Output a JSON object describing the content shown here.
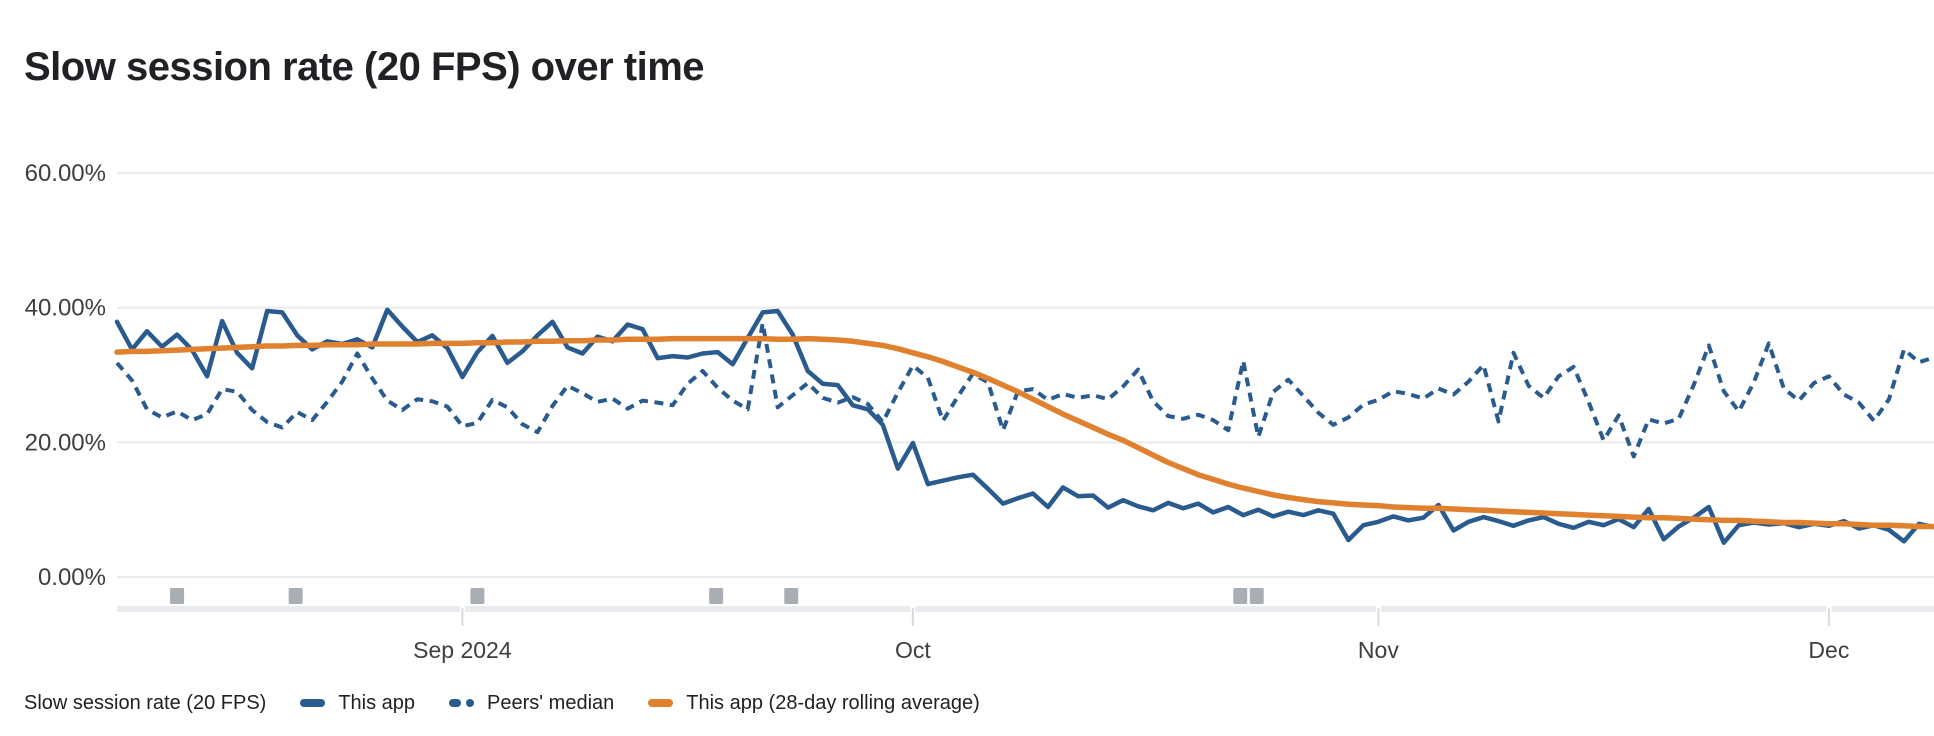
{
  "page": {
    "title": "Slow session rate (20 FPS) over time"
  },
  "colors": {
    "series_blue": "#2a5b8e",
    "series_orange": "#e08130",
    "gridline": "#e9ebee",
    "axis_text": "#3c4043",
    "title_text": "#202124",
    "marker_gray": "#a9aeb4",
    "axis_band": "#e9ebee",
    "axis_tick": "#d8dbde",
    "background": "#ffffff"
  },
  "legend": {
    "label": "Slow session rate (20 FPS)",
    "items": [
      {
        "name": "This app",
        "style": "solid",
        "color": "#2a5b8e"
      },
      {
        "name": "Peers' median",
        "style": "dashed",
        "color": "#2a5b8e"
      },
      {
        "name": "This app (28-day rolling average)",
        "style": "solid",
        "color": "#e08130"
      }
    ]
  },
  "chart_data": {
    "type": "line",
    "title": "Slow session rate (20 FPS) over time",
    "ylabel": "Slow session rate",
    "unit": "percent",
    "grid": "horizontal-only",
    "legend_position": "bottom",
    "x_unit": "day_index (daily points, ~Aug 9 2024 through ~Dec 8 2024)",
    "x_days_total": 121,
    "x_axis": {
      "ticks": [
        {
          "label": "Sep 2024",
          "day": 23
        },
        {
          "label": "Oct",
          "day": 53
        },
        {
          "label": "Nov",
          "day": 84
        },
        {
          "label": "Dec",
          "day": 114
        }
      ]
    },
    "y_axis": {
      "ticks": [
        {
          "label": "60.00%",
          "value": 60
        },
        {
          "label": "40.00%",
          "value": 40
        },
        {
          "label": "20.00%",
          "value": 20
        },
        {
          "label": "0.00%",
          "value": 0
        }
      ],
      "ylim": [
        0,
        66
      ]
    },
    "release_markers": {
      "description": "app release markers under x-axis",
      "color": "#a9aeb4",
      "days": [
        4,
        11.9,
        24,
        39.9,
        44.9,
        74.8,
        75.9
      ]
    },
    "series": [
      {
        "name": "This app",
        "style": "solid",
        "color": "#2a5b8e",
        "width": 4.5,
        "values": [
          37.9,
          33.8,
          36.5,
          34.2,
          36.0,
          33.7,
          29.8,
          38.0,
          33.3,
          31.0,
          39.5,
          39.3,
          35.9,
          33.8,
          35.0,
          34.6,
          35.3,
          34.1,
          39.7,
          37.2,
          34.9,
          35.9,
          34.0,
          29.7,
          33.4,
          35.8,
          31.8,
          33.5,
          35.9,
          37.9,
          34.1,
          33.2,
          35.7,
          35.0,
          37.5,
          36.8,
          32.5,
          32.8,
          32.6,
          33.2,
          33.4,
          31.6,
          35.5,
          39.3,
          39.5,
          36.0,
          30.6,
          28.7,
          28.5,
          25.5,
          24.9,
          22.6,
          16.1,
          19.9,
          13.8,
          14.3,
          14.8,
          15.2,
          13.1,
          10.9,
          11.7,
          12.4,
          10.4,
          13.3,
          12.0,
          12.1,
          10.3,
          11.4,
          10.5,
          9.9,
          11.0,
          10.2,
          10.9,
          9.6,
          10.4,
          9.2,
          10.0,
          9.0,
          9.7,
          9.2,
          9.9,
          9.4,
          5.5,
          7.7,
          8.2,
          9.0,
          8.4,
          8.8,
          10.7,
          6.9,
          8.2,
          8.9,
          8.3,
          7.6,
          8.4,
          8.9,
          7.9,
          7.3,
          8.2,
          7.7,
          8.6,
          7.4,
          10.1,
          5.6,
          7.5,
          8.8,
          10.4,
          5.1,
          7.7,
          8.1,
          7.8,
          8.0,
          7.4,
          7.9,
          7.6,
          8.3,
          7.2,
          7.7,
          7.0,
          5.3,
          7.9,
          7.4
        ]
      },
      {
        "name": "Peers' median",
        "style": "dashed",
        "color": "#2a5b8e",
        "width": 4,
        "values": [
          31.8,
          29.2,
          24.9,
          23.7,
          24.6,
          23.3,
          24.2,
          27.9,
          27.5,
          24.8,
          23.0,
          22.2,
          24.5,
          23.3,
          26.0,
          29.0,
          33.2,
          29.5,
          26.2,
          24.8,
          26.4,
          26.1,
          25.3,
          22.4,
          22.9,
          26.3,
          25.2,
          22.7,
          21.5,
          25.4,
          28.4,
          27.3,
          26.0,
          26.5,
          25.0,
          26.2,
          25.9,
          25.5,
          28.7,
          30.6,
          28.1,
          26.2,
          24.9,
          37.7,
          25.2,
          27.0,
          28.8,
          26.6,
          25.9,
          26.7,
          25.7,
          23.0,
          27.4,
          31.4,
          29.6,
          23.2,
          26.8,
          30.2,
          28.9,
          21.8,
          27.6,
          27.9,
          26.3,
          27.2,
          26.6,
          27.0,
          26.4,
          28.3,
          30.8,
          26.1,
          23.9,
          23.5,
          24.1,
          23.3,
          21.8,
          32.1,
          20.8,
          27.5,
          29.3,
          26.9,
          24.4,
          22.6,
          23.7,
          25.6,
          26.3,
          27.6,
          27.2,
          26.5,
          28.0,
          27.1,
          29.0,
          31.5,
          23.1,
          33.3,
          28.4,
          26.6,
          29.8,
          31.2,
          26.0,
          20.3,
          24.0,
          17.9,
          23.4,
          22.8,
          23.5,
          28.5,
          34.4,
          27.6,
          24.6,
          28.9,
          34.7,
          28.0,
          26.2,
          28.8,
          29.8,
          27.1,
          25.9,
          23.2,
          26.4,
          33.8,
          31.9,
          32.6
        ]
      },
      {
        "name": "This app (28-day rolling average)",
        "style": "solid",
        "color": "#e08130",
        "width": 5.5,
        "values": [
          33.4,
          33.5,
          33.5,
          33.6,
          33.7,
          33.8,
          33.9,
          34.0,
          34.1,
          34.2,
          34.3,
          34.3,
          34.4,
          34.4,
          34.5,
          34.5,
          34.5,
          34.6,
          34.6,
          34.6,
          34.6,
          34.7,
          34.7,
          34.7,
          34.8,
          34.8,
          34.9,
          34.9,
          35.0,
          35.0,
          35.1,
          35.1,
          35.2,
          35.2,
          35.3,
          35.3,
          35.3,
          35.4,
          35.4,
          35.4,
          35.4,
          35.4,
          35.4,
          35.4,
          35.3,
          35.3,
          35.4,
          35.3,
          35.2,
          35.0,
          34.7,
          34.4,
          33.9,
          33.3,
          32.7,
          32.0,
          31.2,
          30.4,
          29.5,
          28.5,
          27.5,
          26.4,
          25.3,
          24.2,
          23.2,
          22.2,
          21.2,
          20.3,
          19.2,
          18.1,
          17.0,
          16.1,
          15.2,
          14.5,
          13.8,
          13.2,
          12.7,
          12.2,
          11.8,
          11.5,
          11.2,
          11.0,
          10.8,
          10.7,
          10.6,
          10.4,
          10.3,
          10.2,
          10.2,
          10.1,
          10.0,
          9.9,
          9.8,
          9.7,
          9.6,
          9.5,
          9.4,
          9.3,
          9.2,
          9.1,
          9.0,
          8.9,
          8.8,
          8.8,
          8.7,
          8.6,
          8.5,
          8.4,
          8.4,
          8.3,
          8.2,
          8.1,
          8.1,
          8.0,
          7.9,
          7.9,
          7.8,
          7.7,
          7.7,
          7.6,
          7.5,
          7.5
        ]
      }
    ]
  }
}
